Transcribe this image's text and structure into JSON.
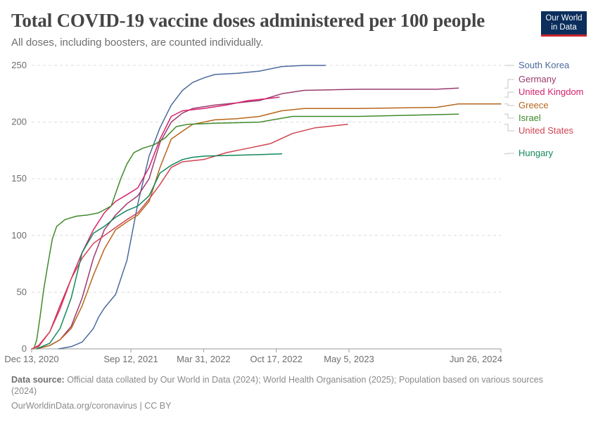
{
  "header": {
    "title": "Total COVID-19 vaccine doses administered per 100 people",
    "subtitle": "All doses, including boosters, are counted individually.",
    "logo_line1": "Our World",
    "logo_line2": "in Data"
  },
  "footer": {
    "source_label": "Data source:",
    "source_text": "Official data collated by Our World in Data (2024); World Health Organisation (2025); Population based on various sources (2024)",
    "link_text": "OurWorldinData.org/coronavirus | CC BY"
  },
  "chart_data": {
    "type": "line",
    "title": "Total COVID-19 vaccine doses administered per 100 people",
    "subtitle": "All doses, including boosters, are counted individually.",
    "xlabel": "",
    "ylabel": "",
    "x_ticks": [
      "Dec 13, 2020",
      "Sep 12, 2021",
      "Mar 31, 2022",
      "Oct 17, 2022",
      "May 5, 2023",
      "Jun 26, 2024"
    ],
    "x_range": [
      "2020-12-13",
      "2024-06-26"
    ],
    "y_ticks": [
      0,
      50,
      100,
      150,
      200,
      250
    ],
    "ylim": [
      0,
      250
    ],
    "grid": "horizontal dashed",
    "legend": "right (labels at line ends)",
    "series": [
      {
        "name": "South Korea",
        "color": "#4c6a9c",
        "points": [
          [
            "2021-02-26",
            0
          ],
          [
            "2021-04-01",
            2
          ],
          [
            "2021-05-01",
            6
          ],
          [
            "2021-06-01",
            18
          ],
          [
            "2021-06-15",
            28
          ],
          [
            "2021-07-01",
            36
          ],
          [
            "2021-08-01",
            48
          ],
          [
            "2021-09-01",
            78
          ],
          [
            "2021-10-01",
            128
          ],
          [
            "2021-11-01",
            170
          ],
          [
            "2021-12-01",
            195
          ],
          [
            "2022-01-01",
            215
          ],
          [
            "2022-02-01",
            228
          ],
          [
            "2022-03-01",
            235
          ],
          [
            "2022-04-01",
            239
          ],
          [
            "2022-05-01",
            242
          ],
          [
            "2022-07-01",
            243
          ],
          [
            "2022-09-01",
            245
          ],
          [
            "2022-11-01",
            249
          ],
          [
            "2023-01-01",
            250
          ],
          [
            "2023-03-01",
            250
          ]
        ]
      },
      {
        "name": "Germany",
        "color": "#9a3b6e",
        "points": [
          [
            "2020-12-27",
            0
          ],
          [
            "2021-02-01",
            3
          ],
          [
            "2021-03-01",
            8
          ],
          [
            "2021-04-01",
            20
          ],
          [
            "2021-05-01",
            45
          ],
          [
            "2021-06-01",
            80
          ],
          [
            "2021-07-01",
            105
          ],
          [
            "2021-08-01",
            118
          ],
          [
            "2021-09-01",
            128
          ],
          [
            "2021-10-01",
            135
          ],
          [
            "2021-11-01",
            150
          ],
          [
            "2021-12-01",
            182
          ],
          [
            "2022-01-01",
            200
          ],
          [
            "2022-02-01",
            208
          ],
          [
            "2022-03-01",
            212
          ],
          [
            "2022-05-01",
            215
          ],
          [
            "2022-07-01",
            217
          ],
          [
            "2022-09-01",
            219
          ],
          [
            "2022-11-01",
            225
          ],
          [
            "2023-01-01",
            228
          ],
          [
            "2023-06-01",
            229
          ],
          [
            "2024-01-01",
            229
          ],
          [
            "2024-03-01",
            230
          ]
        ]
      },
      {
        "name": "United Kingdom",
        "color": "#d6226b",
        "points": [
          [
            "2020-12-13",
            0
          ],
          [
            "2021-01-01",
            2
          ],
          [
            "2021-02-01",
            15
          ],
          [
            "2021-03-01",
            38
          ],
          [
            "2021-04-01",
            62
          ],
          [
            "2021-05-01",
            85
          ],
          [
            "2021-06-01",
            105
          ],
          [
            "2021-07-01",
            120
          ],
          [
            "2021-08-01",
            130
          ],
          [
            "2021-09-01",
            136
          ],
          [
            "2021-10-01",
            142
          ],
          [
            "2021-11-01",
            160
          ],
          [
            "2021-12-01",
            185
          ],
          [
            "2022-01-01",
            205
          ],
          [
            "2022-02-01",
            210
          ],
          [
            "2022-04-01",
            212
          ],
          [
            "2022-06-01",
            215
          ],
          [
            "2022-08-01",
            219
          ],
          [
            "2022-10-01",
            221
          ],
          [
            "2022-10-25",
            222
          ]
        ]
      },
      {
        "name": "Greece",
        "color": "#b8661c",
        "points": [
          [
            "2020-12-27",
            0
          ],
          [
            "2021-02-01",
            3
          ],
          [
            "2021-03-01",
            8
          ],
          [
            "2021-04-01",
            18
          ],
          [
            "2021-05-01",
            38
          ],
          [
            "2021-06-01",
            65
          ],
          [
            "2021-07-01",
            88
          ],
          [
            "2021-08-01",
            105
          ],
          [
            "2021-09-01",
            112
          ],
          [
            "2021-10-01",
            118
          ],
          [
            "2021-11-01",
            130
          ],
          [
            "2021-12-01",
            160
          ],
          [
            "2022-01-01",
            185
          ],
          [
            "2022-02-01",
            192
          ],
          [
            "2022-03-01",
            198
          ],
          [
            "2022-05-01",
            202
          ],
          [
            "2022-07-01",
            203
          ],
          [
            "2022-09-01",
            205
          ],
          [
            "2022-11-01",
            210
          ],
          [
            "2023-01-01",
            212
          ],
          [
            "2023-06-01",
            212
          ],
          [
            "2024-01-01",
            213
          ],
          [
            "2024-03-01",
            216
          ],
          [
            "2024-06-26",
            216
          ]
        ]
      },
      {
        "name": "Israel",
        "color": "#3f8a2b",
        "points": [
          [
            "2020-12-19",
            0
          ],
          [
            "2020-12-27",
            8
          ],
          [
            "2021-01-05",
            28
          ],
          [
            "2021-01-15",
            52
          ],
          [
            "2021-01-27",
            75
          ],
          [
            "2021-02-08",
            97
          ],
          [
            "2021-02-20",
            108
          ],
          [
            "2021-03-15",
            114
          ],
          [
            "2021-04-15",
            117
          ],
          [
            "2021-05-15",
            118
          ],
          [
            "2021-06-15",
            120
          ],
          [
            "2021-07-20",
            126
          ],
          [
            "2021-08-15",
            150
          ],
          [
            "2021-09-01",
            163
          ],
          [
            "2021-09-20",
            173
          ],
          [
            "2021-10-15",
            177
          ],
          [
            "2021-11-15",
            180
          ],
          [
            "2021-12-15",
            186
          ],
          [
            "2022-01-15",
            196
          ],
          [
            "2022-02-15",
            198
          ],
          [
            "2022-05-01",
            199
          ],
          [
            "2022-09-01",
            200
          ],
          [
            "2022-12-01",
            205
          ],
          [
            "2023-06-01",
            205
          ],
          [
            "2024-03-01",
            207
          ]
        ]
      },
      {
        "name": "United States",
        "color": "#d04451",
        "points": [
          [
            "2020-12-14",
            0
          ],
          [
            "2021-01-01",
            3
          ],
          [
            "2021-02-01",
            15
          ],
          [
            "2021-03-01",
            35
          ],
          [
            "2021-04-01",
            62
          ],
          [
            "2021-05-01",
            80
          ],
          [
            "2021-06-01",
            93
          ],
          [
            "2021-07-01",
            100
          ],
          [
            "2021-08-01",
            107
          ],
          [
            "2021-09-01",
            114
          ],
          [
            "2021-10-01",
            120
          ],
          [
            "2021-11-01",
            132
          ],
          [
            "2021-12-01",
            145
          ],
          [
            "2022-01-01",
            160
          ],
          [
            "2022-02-01",
            165
          ],
          [
            "2022-04-01",
            167
          ],
          [
            "2022-06-01",
            173
          ],
          [
            "2022-08-01",
            177
          ],
          [
            "2022-10-01",
            181
          ],
          [
            "2022-12-01",
            190
          ],
          [
            "2023-02-01",
            195
          ],
          [
            "2023-05-01",
            198
          ]
        ]
      },
      {
        "name": "Hungary",
        "color": "#12895a",
        "points": [
          [
            "2020-12-27",
            0
          ],
          [
            "2021-02-01",
            5
          ],
          [
            "2021-03-01",
            18
          ],
          [
            "2021-04-01",
            45
          ],
          [
            "2021-05-01",
            85
          ],
          [
            "2021-06-01",
            102
          ],
          [
            "2021-07-01",
            108
          ],
          [
            "2021-08-01",
            116
          ],
          [
            "2021-09-01",
            122
          ],
          [
            "2021-10-01",
            126
          ],
          [
            "2021-11-01",
            135
          ],
          [
            "2021-12-01",
            155
          ],
          [
            "2022-01-01",
            162
          ],
          [
            "2022-02-01",
            167
          ],
          [
            "2022-03-01",
            169
          ],
          [
            "2022-04-01",
            170
          ],
          [
            "2022-08-01",
            171
          ],
          [
            "2022-11-01",
            172
          ]
        ]
      }
    ],
    "labels": [
      {
        "name": "South Korea",
        "color": "#4c6a9c"
      },
      {
        "name": "Germany",
        "color": "#9a3b6e"
      },
      {
        "name": "United Kingdom",
        "color": "#d6226b"
      },
      {
        "name": "Greece",
        "color": "#b8661c"
      },
      {
        "name": "Israel",
        "color": "#3f8a2b"
      },
      {
        "name": "United States",
        "color": "#d04451"
      },
      {
        "name": "Hungary",
        "color": "#12895a"
      }
    ]
  }
}
